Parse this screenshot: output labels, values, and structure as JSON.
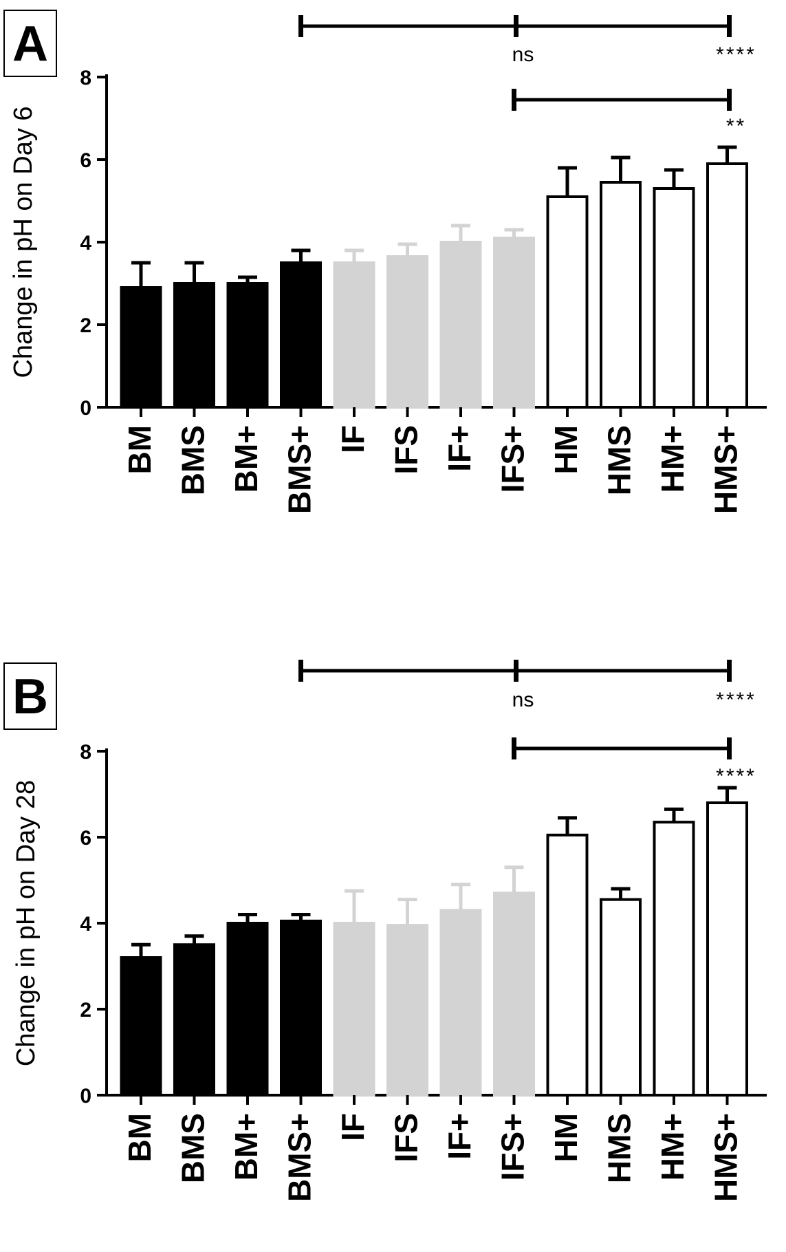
{
  "chart_data": [
    {
      "type": "bar",
      "panel_label": "A",
      "ylabel": "Change in pH on Day 6",
      "ylim": [
        0,
        8
      ],
      "yticks": [
        0,
        2,
        4,
        6,
        8
      ],
      "categories": [
        "BM",
        "BMS",
        "BM+",
        "BMS+",
        "IF",
        "IFS",
        "IF+",
        "IFS+",
        "HM",
        "HMS",
        "HM+",
        "HMS+"
      ],
      "values": [
        2.9,
        3.0,
        3.0,
        3.5,
        3.5,
        3.65,
        4.0,
        4.1,
        5.1,
        5.45,
        5.3,
        5.9
      ],
      "errors": [
        0.6,
        0.5,
        0.15,
        0.3,
        0.3,
        0.3,
        0.4,
        0.2,
        0.7,
        0.6,
        0.45,
        0.4
      ],
      "group_colors": [
        "#000000",
        "#000000",
        "#000000",
        "#000000",
        "#d3d3d3",
        "#d3d3d3",
        "#d3d3d3",
        "#d3d3d3",
        "#ffffff",
        "#ffffff",
        "#ffffff",
        "#ffffff"
      ],
      "significance": [
        {
          "from": "BMS+",
          "mid": "IFS+",
          "to": "HMS+",
          "mid_label": "ns",
          "end_label": "****"
        },
        {
          "from": "IFS+",
          "to": "HMS+",
          "end_label": "**"
        }
      ]
    },
    {
      "type": "bar",
      "panel_label": "B",
      "ylabel": "Change in pH on Day 28",
      "ylim": [
        0,
        8
      ],
      "yticks": [
        0,
        2,
        4,
        6,
        8
      ],
      "categories": [
        "BM",
        "BMS",
        "BM+",
        "BMS+",
        "IF",
        "IFS",
        "IF+",
        "IFS+",
        "HM",
        "HMS",
        "HM+",
        "HMS+"
      ],
      "values": [
        3.2,
        3.5,
        4.0,
        4.05,
        4.0,
        3.95,
        4.3,
        4.7,
        6.05,
        4.55,
        6.35,
        6.8
      ],
      "errors": [
        0.3,
        0.2,
        0.2,
        0.15,
        0.75,
        0.6,
        0.6,
        0.6,
        0.4,
        0.25,
        0.3,
        0.35
      ],
      "group_colors": [
        "#000000",
        "#000000",
        "#000000",
        "#000000",
        "#d3d3d3",
        "#d3d3d3",
        "#d3d3d3",
        "#d3d3d3",
        "#ffffff",
        "#ffffff",
        "#ffffff",
        "#ffffff"
      ],
      "significance": [
        {
          "from": "BMS+",
          "mid": "IFS+",
          "to": "HMS+",
          "mid_label": "ns",
          "end_label": "****"
        },
        {
          "from": "IFS+",
          "to": "HMS+",
          "end_label": "****"
        }
      ]
    }
  ]
}
